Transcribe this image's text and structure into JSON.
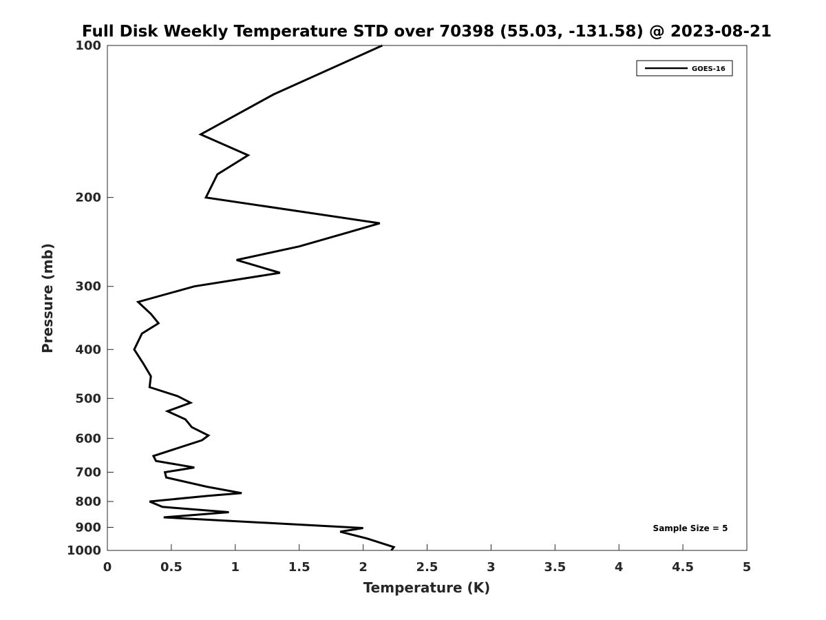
{
  "chart_data": {
    "type": "line",
    "title": "Full Disk Weekly Temperature STD over 70398 (55.03, -131.58) @ 2023-08-21",
    "xlabel": "Temperature (K)",
    "ylabel": "Pressure (mb)",
    "xlim": [
      0,
      5
    ],
    "ylim": [
      100,
      1000
    ],
    "yscale": "log",
    "yreversed": true,
    "grid": false,
    "legend_position": "top-right",
    "xticks": [
      0,
      0.5,
      1,
      1.5,
      2,
      2.5,
      3,
      3.5,
      4,
      4.5,
      5
    ],
    "xtick_labels": [
      "0",
      "0.5",
      "1",
      "1.5",
      "2",
      "2.5",
      "3",
      "3.5",
      "4",
      "4.5",
      "5"
    ],
    "yticks": [
      100,
      200,
      300,
      400,
      500,
      600,
      700,
      800,
      900,
      1000
    ],
    "ytick_labels": [
      "100",
      "200",
      "300",
      "400",
      "500",
      "600",
      "700",
      "800",
      "900",
      "1000"
    ],
    "series": [
      {
        "name": "GOES-16",
        "color": "#000000",
        "points": [
          [
            2.15,
            100
          ],
          [
            1.3,
            125
          ],
          [
            0.73,
            150
          ],
          [
            1.1,
            165
          ],
          [
            0.86,
            180
          ],
          [
            0.77,
            200
          ],
          [
            2.13,
            225
          ],
          [
            1.5,
            250
          ],
          [
            1.01,
            266
          ],
          [
            1.35,
            282
          ],
          [
            0.68,
            300
          ],
          [
            0.24,
            322
          ],
          [
            0.34,
            340
          ],
          [
            0.4,
            355
          ],
          [
            0.27,
            372
          ],
          [
            0.21,
            400
          ],
          [
            0.28,
            426
          ],
          [
            0.34,
            452
          ],
          [
            0.33,
            475
          ],
          [
            0.55,
            495
          ],
          [
            0.65,
            510
          ],
          [
            0.47,
            530
          ],
          [
            0.61,
            550
          ],
          [
            0.66,
            570
          ],
          [
            0.79,
            592
          ],
          [
            0.74,
            605
          ],
          [
            0.36,
            650
          ],
          [
            0.38,
            665
          ],
          [
            0.68,
            685
          ],
          [
            0.45,
            700
          ],
          [
            0.46,
            717
          ],
          [
            0.78,
            748
          ],
          [
            1.05,
            770
          ],
          [
            0.78,
            780
          ],
          [
            0.33,
            800
          ],
          [
            0.43,
            820
          ],
          [
            0.95,
            840
          ],
          [
            0.44,
            860
          ],
          [
            2.0,
            903
          ],
          [
            1.82,
            918
          ],
          [
            2.03,
            947
          ],
          [
            2.24,
            985
          ],
          [
            2.22,
            1000
          ]
        ]
      }
    ],
    "annotations": [
      {
        "text": "Sample Size = 5",
        "position": "bottom-right"
      }
    ]
  }
}
